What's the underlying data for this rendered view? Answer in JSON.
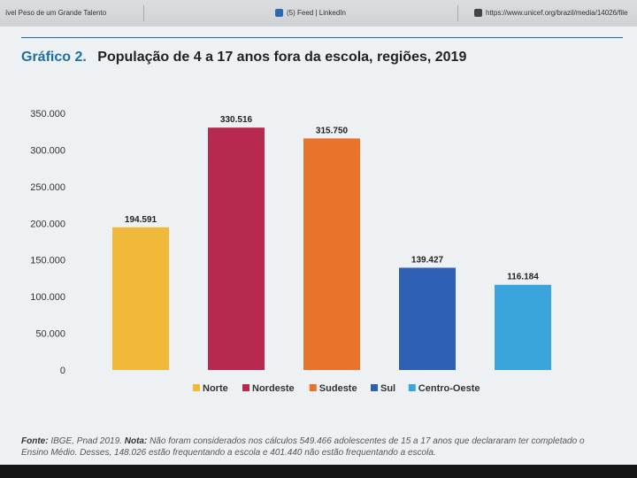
{
  "browser": {
    "tabs": [
      {
        "label": "ível Peso de um Grande Talento"
      },
      {
        "label": "(5) Feed | LinkedIn"
      },
      {
        "label": "https://www.unicef.org/brazil/media/14026/file"
      }
    ]
  },
  "colors": {
    "accent": "#1c6fa8",
    "norte": "#f0b93a",
    "nordeste": "#b8294f",
    "sudeste": "#e8732a",
    "sul": "#2d5fb5",
    "centro_oeste": "#3aa5dc"
  },
  "chart_data": {
    "type": "bar",
    "title_prefix": "Gráfico 2.",
    "title": "População de 4 a 17 anos fora da escola, regiões, 2019",
    "xlabel": "",
    "ylabel": "",
    "ylim": [
      0,
      350000
    ],
    "yticks": [
      "0",
      "50.000",
      "100.000",
      "150.000",
      "200.000",
      "250.000",
      "300.000",
      "350.000"
    ],
    "grid": false,
    "legend": "bottom",
    "categories": [
      "Norte",
      "Nordeste",
      "Sudeste",
      "Sul",
      "Centro-Oeste"
    ],
    "values": [
      194591,
      330516,
      315750,
      139427,
      116184
    ],
    "value_labels": [
      "194.591",
      "330.516",
      "315.750",
      "139.427",
      "116.184"
    ]
  },
  "footnote": {
    "source_label": "Fonte:",
    "source": "IBGE, Pnad 2019.",
    "note_label": "Nota:",
    "note": "Não foram considerados nos cálculos 549.466 adolescentes de 15 a 17 anos que declararam ter completado o Ensino Médio. Desses, 148.026 estão frequentando a escola e 401.440 não estão frequentando a escola."
  }
}
